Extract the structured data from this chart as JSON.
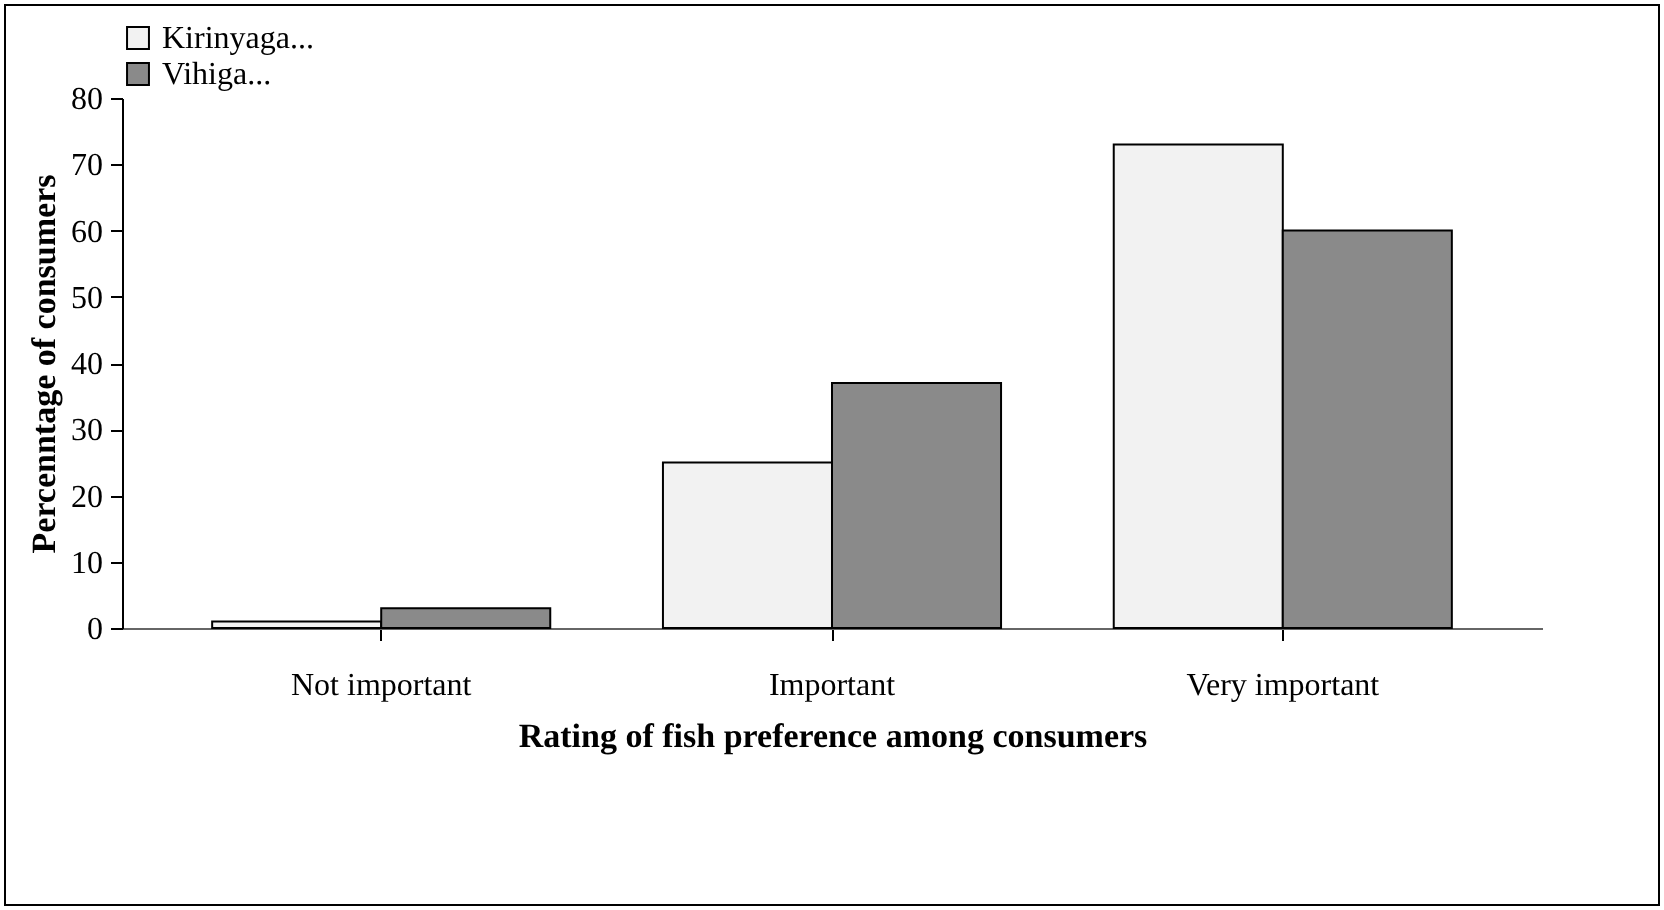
{
  "chart_data": {
    "type": "bar",
    "xlabel": "Rating of fish preference among consumers",
    "ylabel": "Percenntage of consumers",
    "categories": [
      "Not important",
      "Important",
      "Very important"
    ],
    "series": [
      {
        "name": "Kirinyaga...",
        "color": "#f2f2f2",
        "values": [
          1,
          25,
          73
        ]
      },
      {
        "name": "Vihiga...",
        "color": "#8a8a8a",
        "values": [
          3,
          37,
          60
        ]
      }
    ],
    "ylim": [
      0,
      80
    ],
    "yticks": [
      0,
      10,
      20,
      30,
      40,
      50,
      60,
      70,
      80
    ],
    "grid": false,
    "legend": "top"
  }
}
